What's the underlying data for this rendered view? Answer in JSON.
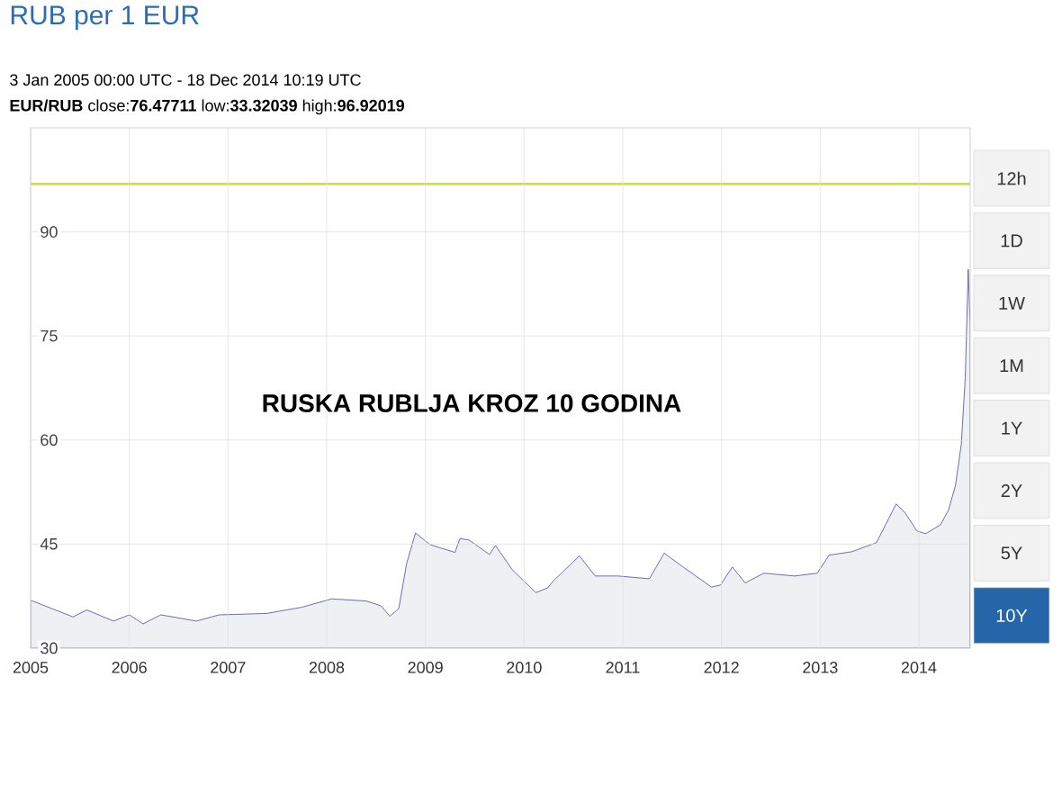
{
  "chart_data": {
    "type": "area",
    "title": "RUB per 1 EUR",
    "subtitle": "3 Jan 2005 00:00 UTC - 18 Dec 2014 10:19 UTC",
    "annotations": [
      "RUSKA RUBLJA KROZ 10 GODINA",
      "**EUR/RUB** close:**76.47711** low:**33.32039** high:**96.92019**",
      "12h",
      "1D",
      "1W",
      "1M",
      "1Y",
      "2Y",
      "5Y",
      "10Y"
    ],
    "x": [
      2005.0,
      2005.43,
      2005.57,
      2005.84,
      2006.0,
      2006.14,
      2006.32,
      2006.68,
      2006.91,
      2007.39,
      2007.75,
      2008.05,
      2008.4,
      2008.55,
      2008.64,
      2008.73,
      2008.81,
      2008.9,
      2009.05,
      2009.3,
      2009.35,
      2009.44,
      2009.65,
      2009.71,
      2009.88,
      2010.12,
      2010.24,
      2010.29,
      2010.56,
      2010.72,
      2010.95,
      2011.27,
      2011.42,
      2011.61,
      2011.9,
      2011.99,
      2012.11,
      2012.24,
      2012.43,
      2012.74,
      2012.97,
      2013.09,
      2013.32,
      2013.57,
      2013.77,
      2013.86,
      2013.98,
      2014.07,
      2014.22,
      2014.3,
      2014.37,
      2014.43,
      2014.47,
      2014.5,
      2014.52
    ],
    "series": [
      {
        "color": "#eff0f4",
        "values": [
          36.9,
          34.5,
          35.5,
          33.9,
          34.8,
          33.5,
          34.8,
          33.9,
          34.8,
          35.0,
          35.9,
          37.1,
          36.8,
          36.1,
          34.6,
          35.7,
          42.2,
          46.6,
          44.9,
          43.8,
          45.8,
          45.6,
          43.5,
          44.8,
          41.3,
          38.0,
          38.7,
          39.6,
          43.3,
          40.4,
          40.4,
          40.0,
          43.7,
          41.7,
          38.8,
          39.1,
          41.7,
          39.4,
          40.8,
          40.4,
          40.8,
          43.4,
          43.9,
          45.2,
          50.8,
          49.5,
          46.9,
          46.5,
          47.8,
          49.9,
          53.4,
          59.4,
          69.0,
          84.6,
          76.5
        ]
      }
    ],
    "xlim": [
      2005,
      2014.52
    ],
    "xticks": [
      2005,
      2006,
      2007,
      2008,
      2009,
      2010,
      2011,
      2012,
      2013,
      2014
    ],
    "ylim": [
      30,
      105
    ],
    "yticks": [
      30,
      45,
      60,
      75,
      90
    ],
    "ref_lines": [
      {
        "axis": "y",
        "value": 96.92,
        "color": "#d2e03c"
      }
    ],
    "grid": true
  }
}
